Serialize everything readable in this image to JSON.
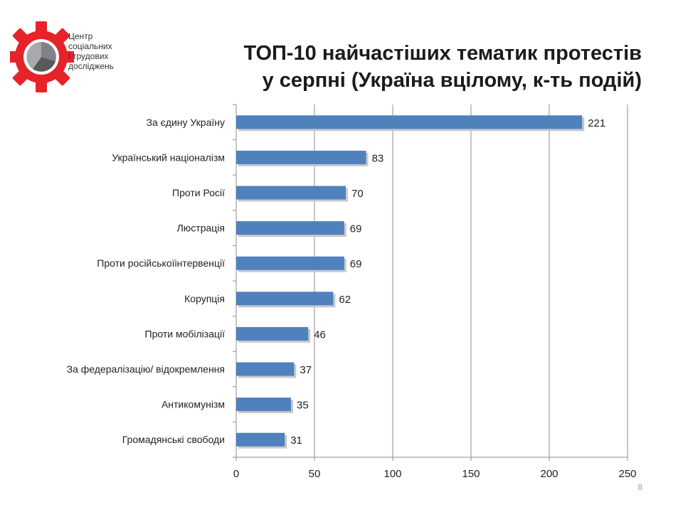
{
  "logo": {
    "name_lines": [
      "Центр",
      "соціальних",
      "і трудових",
      "досліджень"
    ],
    "icon": "gear-pie-chart-icon",
    "colors": {
      "gear": "#e52329",
      "pie_dark": "#58595b",
      "pie_mid": "#808285",
      "pie_light": "#a7a9ac"
    }
  },
  "title": {
    "line1": "ТОП-10 найчастіших тематик протестів",
    "line2": "у серпні (Україна вцілому, к-ть подій)"
  },
  "page_number": "8",
  "chart_data": {
    "type": "bar",
    "orientation": "horizontal",
    "categories": [
      "За єдину Україну",
      "Український націоналізм",
      "Проти Росії",
      "Люстрація",
      "Проти російськоїінтервенції",
      "Корупція",
      "Проти мобілізації",
      "За федералізацію/ відокремлення",
      "Антикомунізм",
      "Громадянські свободи"
    ],
    "values": [
      221,
      83,
      70,
      69,
      69,
      62,
      46,
      37,
      35,
      31
    ],
    "data_labels": [
      "221",
      "83",
      "70",
      "69",
      "69",
      "62",
      "46",
      "37",
      "35",
      "31"
    ],
    "xlim": [
      0,
      250
    ],
    "xticks": [
      0,
      50,
      100,
      150,
      200,
      250
    ],
    "xtick_labels": [
      "0",
      "50",
      "100",
      "150",
      "200",
      "250"
    ],
    "grid": "vertical",
    "legend": "none",
    "bar_color": "#4f81bd"
  }
}
